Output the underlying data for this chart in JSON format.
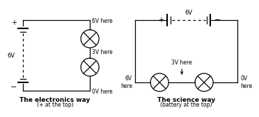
{
  "bg_color": "#ffffff",
  "line_color": "#000000",
  "title1": "The electronics way",
  "subtitle1": "(+ at the top)",
  "title2": "The science way",
  "subtitle2": "(battery at the top)",
  "label_6v_left": "6V",
  "label_plus1": "+",
  "label_minus1": "−",
  "label_6v_here": "6V here",
  "label_3v_here": "3V here",
  "label_0v_here": "0V here",
  "label_6v_top": "6V",
  "label_plus2": "+",
  "label_minus2": "−",
  "label_6v_here2": "6V\nhere",
  "label_3v_here2": "3V here",
  "label_0v_here2": "0V\nhere"
}
